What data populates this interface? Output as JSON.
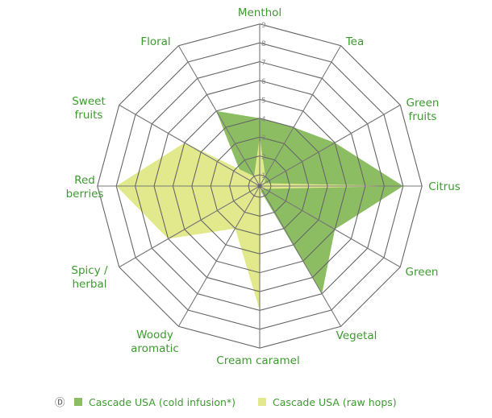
{
  "chart_data": {
    "type": "radar",
    "categories": [
      "Menthol",
      "Tea",
      "Green fruits",
      "Citrus",
      "Green",
      "Vegetal",
      "Cream caramel",
      "Woody aromatic",
      "Spicy / herbal",
      "Red berries",
      "Sweet fruits",
      "Floral"
    ],
    "tick_labels": [
      "1",
      "2",
      "3",
      "4",
      "5",
      "6",
      "7",
      "8",
      "9"
    ],
    "rlim": [
      0,
      9
    ],
    "grid": true,
    "legend_position": "bottom",
    "series": [
      {
        "name": "Cascade USA (cold infusion*)",
        "color": "#8dbd63",
        "values": [
          4,
          4,
          5,
          8,
          5,
          7,
          0.3,
          0.3,
          0.3,
          2,
          1.5,
          5
        ]
      },
      {
        "name": "Cascade USA (raw hops)",
        "color": "#e1e98c",
        "values": [
          3,
          1,
          0.5,
          8,
          0.5,
          0.3,
          7,
          3,
          6,
          8,
          5,
          1
        ]
      }
    ],
    "legend_marker": "Ⓓ"
  }
}
